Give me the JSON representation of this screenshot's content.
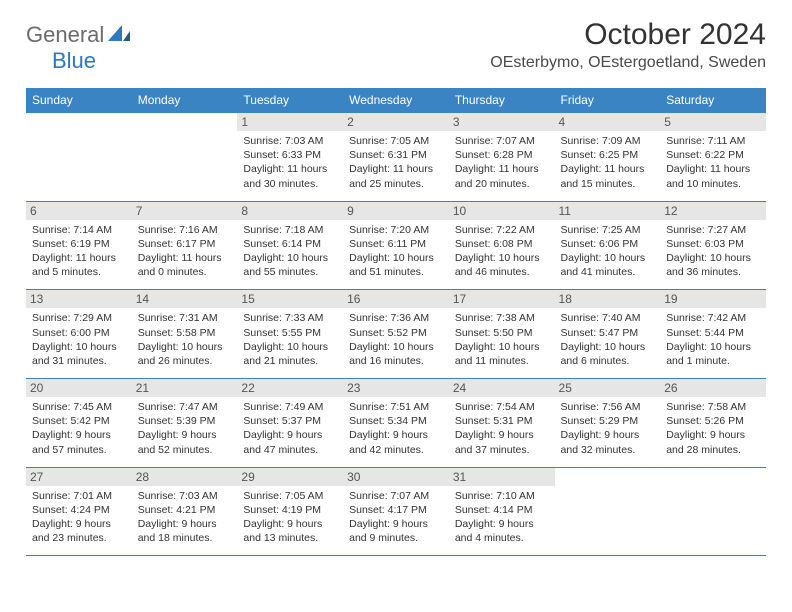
{
  "logo": {
    "part1": "General",
    "part2": "Blue"
  },
  "title": "October 2024",
  "location": "OEsterbymo, OEstergoetland, Sweden",
  "colors": {
    "header_bg": "#3b84c4",
    "header_text": "#ffffff",
    "daynum_bg": "#e6e6e6",
    "border": "#3b84c4",
    "logo_gray": "#6b6b6b",
    "logo_blue": "#2b7ac0"
  },
  "weekdays": [
    "Sunday",
    "Monday",
    "Tuesday",
    "Wednesday",
    "Thursday",
    "Friday",
    "Saturday"
  ],
  "weeks": [
    [
      null,
      null,
      {
        "n": "1",
        "sr": "Sunrise: 7:03 AM",
        "ss": "Sunset: 6:33 PM",
        "d1": "Daylight: 11 hours",
        "d2": "and 30 minutes."
      },
      {
        "n": "2",
        "sr": "Sunrise: 7:05 AM",
        "ss": "Sunset: 6:31 PM",
        "d1": "Daylight: 11 hours",
        "d2": "and 25 minutes."
      },
      {
        "n": "3",
        "sr": "Sunrise: 7:07 AM",
        "ss": "Sunset: 6:28 PM",
        "d1": "Daylight: 11 hours",
        "d2": "and 20 minutes."
      },
      {
        "n": "4",
        "sr": "Sunrise: 7:09 AM",
        "ss": "Sunset: 6:25 PM",
        "d1": "Daylight: 11 hours",
        "d2": "and 15 minutes."
      },
      {
        "n": "5",
        "sr": "Sunrise: 7:11 AM",
        "ss": "Sunset: 6:22 PM",
        "d1": "Daylight: 11 hours",
        "d2": "and 10 minutes."
      }
    ],
    [
      {
        "n": "6",
        "sr": "Sunrise: 7:14 AM",
        "ss": "Sunset: 6:19 PM",
        "d1": "Daylight: 11 hours",
        "d2": "and 5 minutes."
      },
      {
        "n": "7",
        "sr": "Sunrise: 7:16 AM",
        "ss": "Sunset: 6:17 PM",
        "d1": "Daylight: 11 hours",
        "d2": "and 0 minutes."
      },
      {
        "n": "8",
        "sr": "Sunrise: 7:18 AM",
        "ss": "Sunset: 6:14 PM",
        "d1": "Daylight: 10 hours",
        "d2": "and 55 minutes."
      },
      {
        "n": "9",
        "sr": "Sunrise: 7:20 AM",
        "ss": "Sunset: 6:11 PM",
        "d1": "Daylight: 10 hours",
        "d2": "and 51 minutes."
      },
      {
        "n": "10",
        "sr": "Sunrise: 7:22 AM",
        "ss": "Sunset: 6:08 PM",
        "d1": "Daylight: 10 hours",
        "d2": "and 46 minutes."
      },
      {
        "n": "11",
        "sr": "Sunrise: 7:25 AM",
        "ss": "Sunset: 6:06 PM",
        "d1": "Daylight: 10 hours",
        "d2": "and 41 minutes."
      },
      {
        "n": "12",
        "sr": "Sunrise: 7:27 AM",
        "ss": "Sunset: 6:03 PM",
        "d1": "Daylight: 10 hours",
        "d2": "and 36 minutes."
      }
    ],
    [
      {
        "n": "13",
        "sr": "Sunrise: 7:29 AM",
        "ss": "Sunset: 6:00 PM",
        "d1": "Daylight: 10 hours",
        "d2": "and 31 minutes."
      },
      {
        "n": "14",
        "sr": "Sunrise: 7:31 AM",
        "ss": "Sunset: 5:58 PM",
        "d1": "Daylight: 10 hours",
        "d2": "and 26 minutes."
      },
      {
        "n": "15",
        "sr": "Sunrise: 7:33 AM",
        "ss": "Sunset: 5:55 PM",
        "d1": "Daylight: 10 hours",
        "d2": "and 21 minutes."
      },
      {
        "n": "16",
        "sr": "Sunrise: 7:36 AM",
        "ss": "Sunset: 5:52 PM",
        "d1": "Daylight: 10 hours",
        "d2": "and 16 minutes."
      },
      {
        "n": "17",
        "sr": "Sunrise: 7:38 AM",
        "ss": "Sunset: 5:50 PM",
        "d1": "Daylight: 10 hours",
        "d2": "and 11 minutes."
      },
      {
        "n": "18",
        "sr": "Sunrise: 7:40 AM",
        "ss": "Sunset: 5:47 PM",
        "d1": "Daylight: 10 hours",
        "d2": "and 6 minutes."
      },
      {
        "n": "19",
        "sr": "Sunrise: 7:42 AM",
        "ss": "Sunset: 5:44 PM",
        "d1": "Daylight: 10 hours",
        "d2": "and 1 minute."
      }
    ],
    [
      {
        "n": "20",
        "sr": "Sunrise: 7:45 AM",
        "ss": "Sunset: 5:42 PM",
        "d1": "Daylight: 9 hours",
        "d2": "and 57 minutes."
      },
      {
        "n": "21",
        "sr": "Sunrise: 7:47 AM",
        "ss": "Sunset: 5:39 PM",
        "d1": "Daylight: 9 hours",
        "d2": "and 52 minutes."
      },
      {
        "n": "22",
        "sr": "Sunrise: 7:49 AM",
        "ss": "Sunset: 5:37 PM",
        "d1": "Daylight: 9 hours",
        "d2": "and 47 minutes."
      },
      {
        "n": "23",
        "sr": "Sunrise: 7:51 AM",
        "ss": "Sunset: 5:34 PM",
        "d1": "Daylight: 9 hours",
        "d2": "and 42 minutes."
      },
      {
        "n": "24",
        "sr": "Sunrise: 7:54 AM",
        "ss": "Sunset: 5:31 PM",
        "d1": "Daylight: 9 hours",
        "d2": "and 37 minutes."
      },
      {
        "n": "25",
        "sr": "Sunrise: 7:56 AM",
        "ss": "Sunset: 5:29 PM",
        "d1": "Daylight: 9 hours",
        "d2": "and 32 minutes."
      },
      {
        "n": "26",
        "sr": "Sunrise: 7:58 AM",
        "ss": "Sunset: 5:26 PM",
        "d1": "Daylight: 9 hours",
        "d2": "and 28 minutes."
      }
    ],
    [
      {
        "n": "27",
        "sr": "Sunrise: 7:01 AM",
        "ss": "Sunset: 4:24 PM",
        "d1": "Daylight: 9 hours",
        "d2": "and 23 minutes."
      },
      {
        "n": "28",
        "sr": "Sunrise: 7:03 AM",
        "ss": "Sunset: 4:21 PM",
        "d1": "Daylight: 9 hours",
        "d2": "and 18 minutes."
      },
      {
        "n": "29",
        "sr": "Sunrise: 7:05 AM",
        "ss": "Sunset: 4:19 PM",
        "d1": "Daylight: 9 hours",
        "d2": "and 13 minutes."
      },
      {
        "n": "30",
        "sr": "Sunrise: 7:07 AM",
        "ss": "Sunset: 4:17 PM",
        "d1": "Daylight: 9 hours",
        "d2": "and 9 minutes."
      },
      {
        "n": "31",
        "sr": "Sunrise: 7:10 AM",
        "ss": "Sunset: 4:14 PM",
        "d1": "Daylight: 9 hours",
        "d2": "and 4 minutes."
      },
      null,
      null
    ]
  ]
}
